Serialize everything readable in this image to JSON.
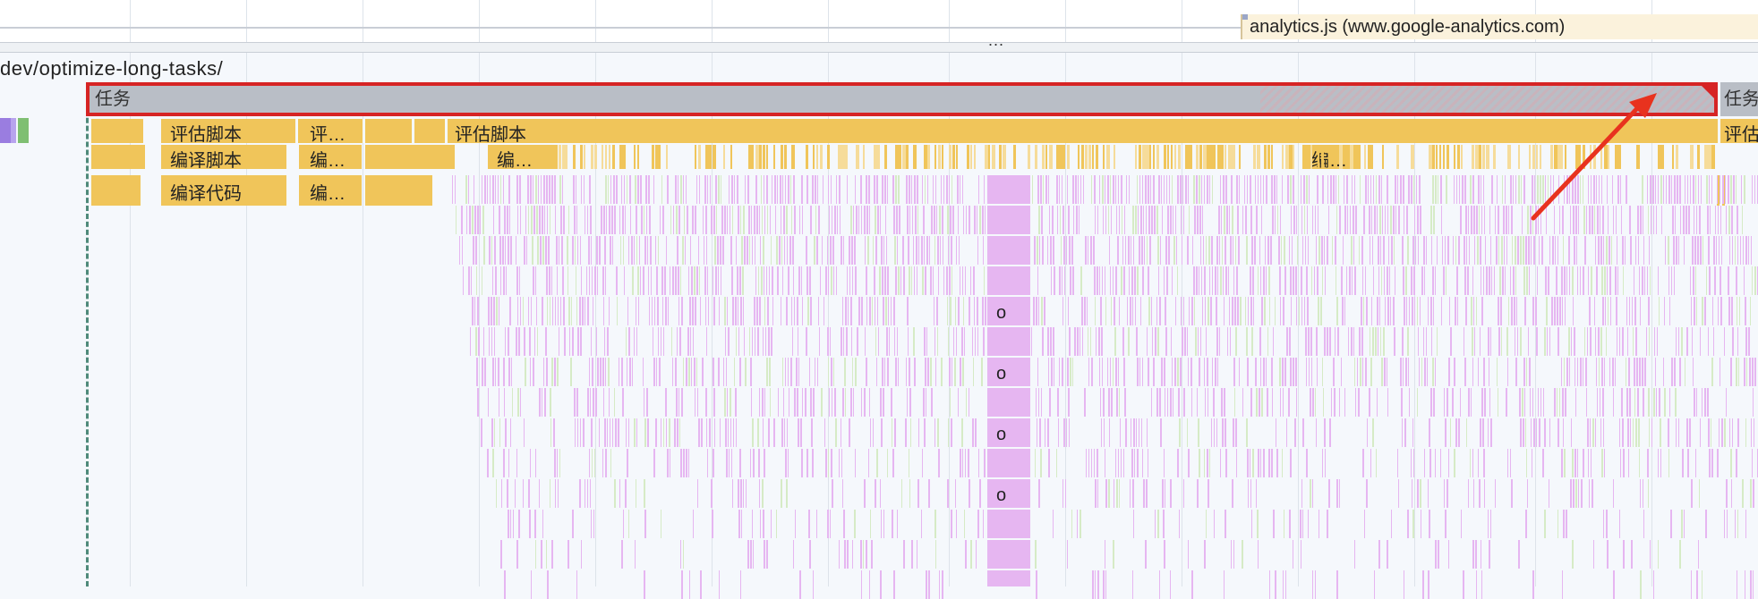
{
  "top_bar": {
    "ellipsis": "...",
    "analytics_label": "analytics.js (www.google-analytics.com)"
  },
  "url_label": "dev/optimize-long-tasks/",
  "tracks": {
    "main_task_label": "任务",
    "right_task_label": "任务",
    "evaluate_script_label": "评估脚本",
    "evaluate_script_short": "评…",
    "evaluate_script_right": "评估",
    "compile_script_label": "编译脚本",
    "compile_script_short": "编…",
    "compile_code_label": "编译代码",
    "compile_code_short": "编…",
    "mid_evaluate_label": "评估脚本",
    "mid_compile_short": "编…",
    "far_compile_short": "编…"
  },
  "flame_labels": [
    "o",
    "o",
    "o",
    "o"
  ],
  "colors": {
    "task": "#b9bec6",
    "script": "#f0c55a",
    "script_light": "#f6dc9a",
    "function": "#e6b6f1",
    "gc": "#d6ebc6",
    "highlight": "#d62424"
  }
}
